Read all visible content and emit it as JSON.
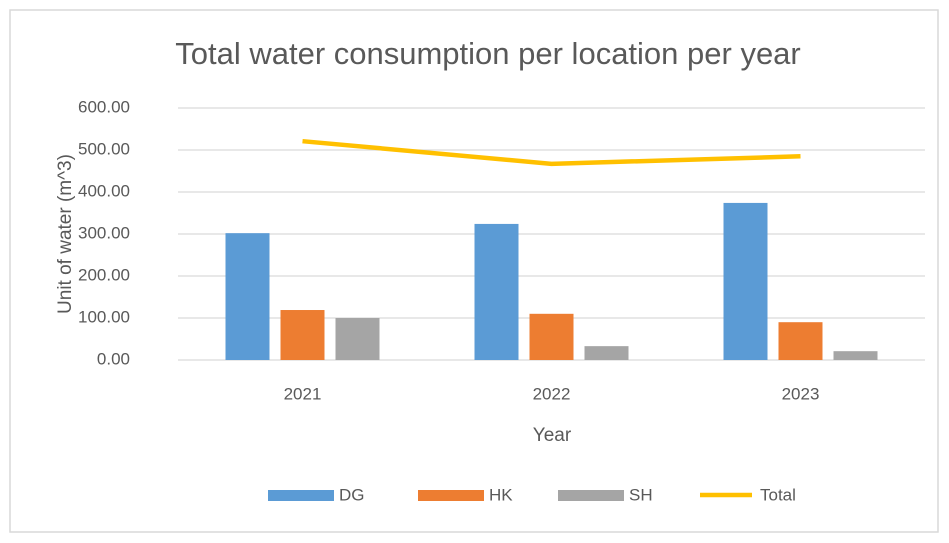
{
  "chart_data": {
    "type": "bar",
    "title": "Total water consumption per location per year",
    "x_label": "Year",
    "y_label": "Unit of water (m^3)",
    "categories": [
      "2021",
      "2022",
      "2023"
    ],
    "series": [
      {
        "name": "DG",
        "color": "#5b9bd5",
        "values": [
          302,
          324,
          374
        ]
      },
      {
        "name": "HK",
        "color": "#ed7d31",
        "values": [
          119,
          110,
          90
        ]
      },
      {
        "name": "SH",
        "color": "#a5a5a5",
        "values": [
          100,
          33,
          21
        ]
      },
      {
        "name": "Total",
        "color": "#ffc000",
        "type": "line",
        "values": [
          521,
          467,
          485
        ]
      }
    ],
    "ylim": [
      0,
      600
    ],
    "yticks": [
      {
        "value": 0,
        "label": "0.00"
      },
      {
        "value": 100,
        "label": "100.00"
      },
      {
        "value": 200,
        "label": "200.00"
      },
      {
        "value": 300,
        "label": "300.00"
      },
      {
        "value": 400,
        "label": "400.00"
      },
      {
        "value": 500,
        "label": "500.00"
      },
      {
        "value": 600,
        "label": "600.00"
      }
    ],
    "grid": true,
    "legend": "bottom"
  }
}
